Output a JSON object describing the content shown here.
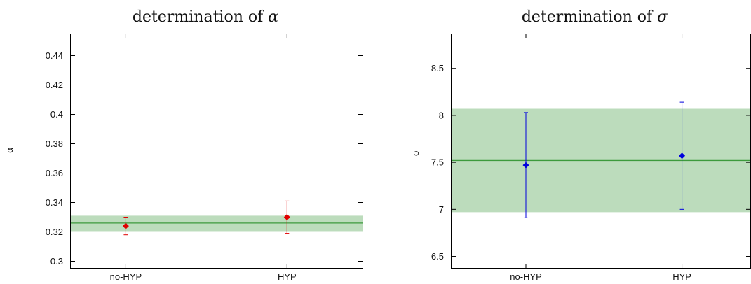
{
  "chart_data": [
    {
      "type": "scatter",
      "title": "determination of ",
      "title_symbol": "α",
      "xlabel": "",
      "ylabel": "α",
      "categories": [
        "no-HYP",
        "HYP"
      ],
      "ylim": [
        0.295,
        0.455
      ],
      "yticks": [
        0.3,
        0.32,
        0.34,
        0.36,
        0.38,
        0.4,
        0.42,
        0.44
      ],
      "ytick_labels": [
        "0.3",
        "0.32",
        "0.34",
        "0.36",
        "0.38",
        "0.4",
        "0.42",
        "0.44"
      ],
      "points": [
        {
          "category": "no-HYP",
          "y": 0.324,
          "low": 0.318,
          "high": 0.33
        },
        {
          "category": "HYP",
          "y": 0.33,
          "low": 0.319,
          "high": 0.341
        }
      ],
      "band": {
        "center": 0.326,
        "low": 0.3205,
        "high": 0.331
      },
      "point_color": "#e00000",
      "band_color": "#bcdcbc",
      "line_color": "#3c9a3c",
      "grid": false
    },
    {
      "type": "scatter",
      "title": "determination of ",
      "title_symbol": "σ",
      "xlabel": "",
      "ylabel": "σ",
      "categories": [
        "no-HYP",
        "HYP"
      ],
      "ylim": [
        6.37,
        8.87
      ],
      "yticks": [
        6.5,
        7,
        7.5,
        8,
        8.5
      ],
      "ytick_labels": [
        "6.5",
        "7",
        "7.5",
        "8",
        "8.5"
      ],
      "points": [
        {
          "category": "no-HYP",
          "y": 7.47,
          "low": 6.91,
          "high": 8.03
        },
        {
          "category": "HYP",
          "y": 7.57,
          "low": 7.0,
          "high": 8.14
        }
      ],
      "band": {
        "center": 7.52,
        "low": 6.97,
        "high": 8.07
      },
      "point_color": "#0000dd",
      "band_color": "#bcdcbc",
      "line_color": "#3c9a3c",
      "grid": false
    }
  ]
}
